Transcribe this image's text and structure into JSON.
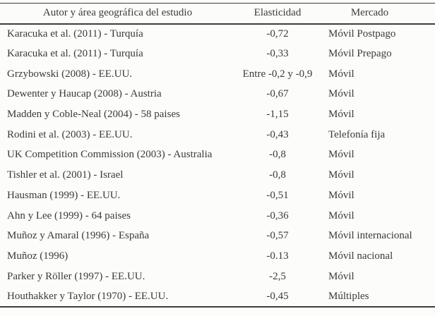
{
  "page": {
    "kind": "scanned-paper-table",
    "background_color": "#fcfcfb",
    "text_color": "#3b3a3a",
    "rule_color": "#3f3e3e"
  },
  "table": {
    "columns": [
      {
        "label": "Autor y área geográfica del estudio"
      },
      {
        "label": "Elasticidad"
      },
      {
        "label": "Mercado"
      }
    ],
    "rows": [
      {
        "autor": "Karacuka et al. (2011) - Turquía",
        "elasticidad": "-0,72",
        "mercado": "Móvil Postpago"
      },
      {
        "autor": "Karacuka et al. (2011) - Turquía",
        "elasticidad": "-0,33",
        "mercado": "Móvil Prepago"
      },
      {
        "autor": "Grzybowski (2008) - EE.UU.",
        "elasticidad": "Entre -0,2 y -0,9",
        "mercado": "Móvil"
      },
      {
        "autor": "Dewenter y Haucap (2008) - Austria",
        "elasticidad": "-0,67",
        "mercado": "Móvil"
      },
      {
        "autor": "Madden y Coble-Neal (2004) - 58 paises",
        "elasticidad": "-1,15",
        "mercado": "Móvil"
      },
      {
        "autor": "Rodini et al. (2003) - EE.UU.",
        "elasticidad": "-0,43",
        "mercado": "Telefonía fija"
      },
      {
        "autor": "UK Competition Commission (2003) - Australia",
        "elasticidad": "-0,8",
        "mercado": "Móvil"
      },
      {
        "autor": "Tishler et al. (2001) - Israel",
        "elasticidad": "-0,8",
        "mercado": "Móvil"
      },
      {
        "autor": "Hausman (1999) - EE.UU.",
        "elasticidad": "-0,51",
        "mercado": "Móvil"
      },
      {
        "autor": "Ahn y Lee (1999) - 64 paises",
        "elasticidad": "-0,36",
        "mercado": "Móvil"
      },
      {
        "autor": "Muñoz y Amaral (1996) - España",
        "elasticidad": "-0,57",
        "mercado": "Móvil internacional"
      },
      {
        "autor": "Muñoz (1996)",
        "elasticidad": "-0.13",
        "mercado": "Móvil nacional"
      },
      {
        "autor": "Parker y Röller (1997) - EE.UU.",
        "elasticidad": "-2,5",
        "mercado": "Móvil"
      },
      {
        "autor": "Houthakker y Taylor (1970) - EE.UU.",
        "elasticidad": "-0,45",
        "mercado": "Múltiples"
      }
    ]
  }
}
